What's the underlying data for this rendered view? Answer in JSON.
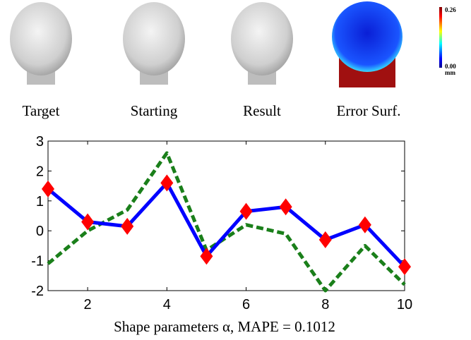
{
  "figure": {
    "panels": [
      "Target",
      "Starting",
      "Result",
      "Error Surf."
    ],
    "colorbar": {
      "max": "0.26",
      "min": "0.00",
      "unit": "mm"
    }
  },
  "chart_data": {
    "type": "line",
    "x": [
      1,
      2,
      3,
      4,
      5,
      6,
      7,
      8,
      9,
      10
    ],
    "series": [
      {
        "color": "#0000ff",
        "values": [
          1.4,
          0.3,
          0.15,
          1.6,
          -0.85,
          0.65,
          0.8,
          -0.3,
          0.2,
          -1.2
        ],
        "marker_color": "#ff0000"
      },
      {
        "color": "#1a7f1a",
        "values": [
          -1.1,
          0.0,
          0.7,
          2.6,
          -0.65,
          0.2,
          -0.1,
          -2.0,
          -0.5,
          -1.8
        ],
        "dashed": true
      }
    ],
    "xlim": [
      1,
      10
    ],
    "ylim": [
      -2,
      3
    ],
    "xticks": [
      2,
      4,
      6,
      8,
      10
    ],
    "yticks": [
      -2,
      -1,
      0,
      1,
      2,
      3
    ],
    "xlabel": "Shape parameters α, MAPE = 0.1012"
  }
}
